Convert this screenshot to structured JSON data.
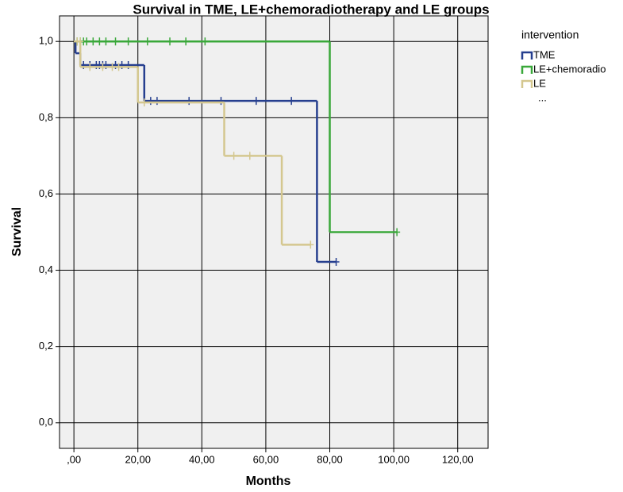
{
  "chart_data": {
    "type": "step",
    "title": "Survival in TME, LE+chemoradiotherapy and LE groups",
    "x_label": "Months",
    "y_label": "Survival",
    "legend_title": "intervention",
    "legend_more": "...",
    "xlim": [
      -4.5,
      129.5
    ],
    "ylim": [
      -0.067,
      1.067
    ],
    "xticks": [
      {
        "value": 0,
        "label": ",00"
      },
      {
        "value": 20,
        "label": "20,00"
      },
      {
        "value": 40,
        "label": "40,00"
      },
      {
        "value": 60,
        "label": "60,00"
      },
      {
        "value": 80,
        "label": "80,00"
      },
      {
        "value": 100,
        "label": "100,00"
      },
      {
        "value": 120,
        "label": "120,00"
      }
    ],
    "yticks": [
      {
        "value": 0,
        "label": "0,0"
      },
      {
        "value": 0.2,
        "label": "0,2"
      },
      {
        "value": 0.4,
        "label": "0,4"
      },
      {
        "value": 0.6,
        "label": "0,6"
      },
      {
        "value": 0.8,
        "label": "0,8"
      },
      {
        "value": 1.0,
        "label": "1,0"
      }
    ],
    "grid": true,
    "series": [
      {
        "name": "TME",
        "color": "#263f8f",
        "x": [
          0,
          0.5,
          2,
          22,
          76,
          82
        ],
        "values": [
          1.0,
          0.969,
          0.938,
          0.844,
          0.422,
          0.422
        ],
        "censored_x": [
          3,
          5,
          7,
          8,
          9,
          10,
          13,
          15,
          17,
          24,
          26,
          36,
          46,
          57,
          68,
          82
        ],
        "censored_values": [
          0.938,
          0.938,
          0.938,
          0.938,
          0.938,
          0.938,
          0.938,
          0.938,
          0.938,
          0.844,
          0.844,
          0.844,
          0.844,
          0.844,
          0.844,
          0.422
        ]
      },
      {
        "name": "LE+chemoradio",
        "color": "#3aa83a",
        "x": [
          0,
          80,
          101
        ],
        "values": [
          1.0,
          0.5,
          0.5
        ],
        "censored_x": [
          1,
          2,
          3,
          4,
          6,
          8,
          10,
          13,
          17,
          23,
          30,
          35,
          41,
          101
        ],
        "censored_values": [
          1.0,
          1.0,
          1.0,
          1.0,
          1.0,
          1.0,
          1.0,
          1.0,
          1.0,
          1.0,
          1.0,
          1.0,
          1.0,
          0.5
        ]
      },
      {
        "name": "LE",
        "color": "#d4c78f",
        "x": [
          0,
          2,
          20,
          47,
          65,
          74
        ],
        "values": [
          1.0,
          0.933,
          0.84,
          0.7,
          0.467,
          0.467
        ],
        "censored_x": [
          1,
          2,
          5,
          9,
          12,
          14,
          22,
          50,
          55,
          74
        ],
        "censored_values": [
          1.0,
          1.0,
          0.933,
          0.933,
          0.933,
          0.933,
          0.84,
          0.7,
          0.7,
          0.467
        ]
      }
    ]
  }
}
